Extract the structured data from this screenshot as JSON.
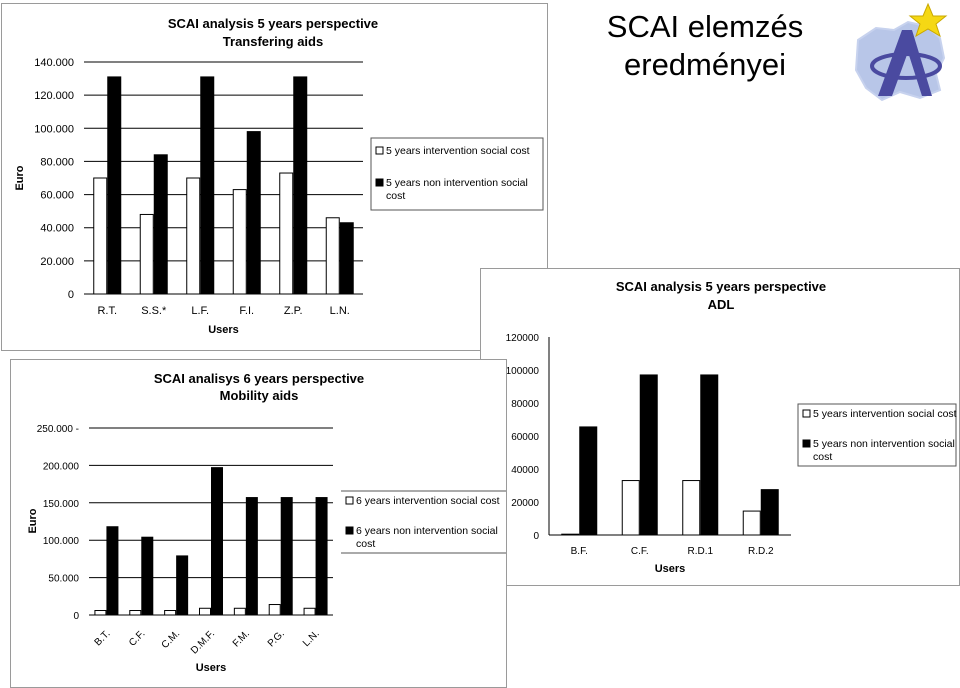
{
  "slide": {
    "title_line1": "SCAI elemzés",
    "title_line2": "eredményei",
    "logo_icon": "eu-star-logo-icon"
  },
  "colors": {
    "bar_light": "#ffffff",
    "bar_dark": "#000000",
    "grid": "#000000"
  },
  "chart_data": [
    {
      "type": "bar",
      "title": "SCAI analysis 5 years perspective",
      "subtitle": "Transfering aids",
      "xlabel": "Users",
      "ylabel": "Euro",
      "categories": [
        "R.T.",
        "S.S.*",
        "L.F.",
        "F.I.",
        "Z.P.",
        "L.N."
      ],
      "series": [
        {
          "name": "5 years intervention social cost",
          "values": [
            70000,
            48000,
            70000,
            63000,
            73000,
            46000
          ]
        },
        {
          "name": "5 years non intervention social cost",
          "values": [
            131000,
            84000,
            131000,
            98000,
            131000,
            43000
          ]
        }
      ],
      "ylim": [
        0,
        140000
      ],
      "yticks": [
        0,
        20000,
        40000,
        60000,
        80000,
        100000,
        120000,
        140000
      ],
      "ytick_labels": [
        "0",
        "20.000",
        "40.000",
        "60.000",
        "80.000",
        "100.000",
        "120.000",
        "140.000"
      ],
      "grid": true,
      "legend": "right"
    },
    {
      "type": "bar",
      "title": "SCAI analysis 5 years perspective",
      "subtitle": "ADL",
      "xlabel": "Users",
      "ylabel": "",
      "categories": [
        "B.F.",
        "C.F.",
        "R.D.1",
        "R.D.2"
      ],
      "series": [
        {
          "name": "5 years intervention social cost",
          "values": [
            500,
            33000,
            33000,
            14500
          ]
        },
        {
          "name": "5 years non intervention social cost",
          "values": [
            65500,
            97000,
            97000,
            27500
          ]
        }
      ],
      "ylim": [
        0,
        120000
      ],
      "yticks": [
        0,
        20000,
        40000,
        60000,
        80000,
        100000,
        120000
      ],
      "ytick_labels": [
        "0",
        "20000",
        "40000",
        "60000",
        "80000",
        "100000",
        "120000"
      ],
      "grid": false,
      "legend": "right"
    },
    {
      "type": "bar",
      "title": "SCAI analisys 6 years perspective",
      "subtitle": "Mobility aids",
      "xlabel": "Users",
      "ylabel": "Euro",
      "categories": [
        "B.T.",
        "C.F.",
        "C.M.",
        "D.M.F.",
        "F.M.",
        "P.G.",
        "L.N."
      ],
      "series": [
        {
          "name": "6 years intervention social cost",
          "values": [
            6000,
            6000,
            6000,
            9000,
            9000,
            14000,
            9000
          ]
        },
        {
          "name": "6 years non intervention social cost",
          "values": [
            118000,
            104000,
            79000,
            197000,
            157000,
            157000,
            157000
          ]
        }
      ],
      "ylim": [
        0,
        250000
      ],
      "yticks": [
        0,
        50000,
        100000,
        150000,
        200000,
        250000
      ],
      "ytick_labels": [
        "0",
        "50.000",
        "100.000",
        "150.000",
        "200.000",
        "250.000 -"
      ],
      "grid": true,
      "legend": "right"
    }
  ]
}
